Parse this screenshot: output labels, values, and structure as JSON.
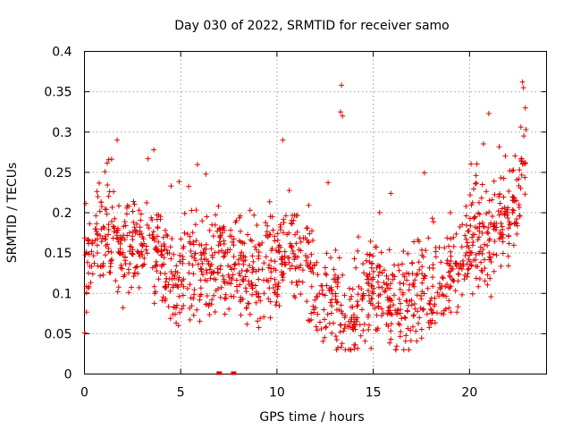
{
  "chart_data": {
    "type": "scatter",
    "title": "Day 030 of 2022, SRMTID for receiver samo",
    "xlabel": "GPS time / hours",
    "ylabel": "SRMTID / TECUs",
    "xlim": [
      0,
      24
    ],
    "ylim": [
      0,
      0.4
    ],
    "xticks": [
      0,
      5,
      10,
      15,
      20
    ],
    "xtick_labels": [
      "0",
      "5",
      "10",
      "15",
      "20"
    ],
    "yticks": [
      0,
      0.05,
      0.1,
      0.15,
      0.2,
      0.25,
      0.3,
      0.35,
      0.4
    ],
    "ytick_labels": [
      "0",
      "0.05",
      "0.1",
      "0.15",
      "0.2",
      "0.25",
      "0.3",
      "0.35",
      "0.4"
    ],
    "grid": true,
    "marker": "plus",
    "color": "#e00000",
    "zero_markers": {
      "x": [
        7.0,
        7.75
      ],
      "y": [
        0,
        0
      ]
    },
    "envelope": [
      [
        0.0,
        0.13
      ],
      [
        0.5,
        0.17
      ],
      [
        1.0,
        0.17
      ],
      [
        1.5,
        0.17
      ],
      [
        2.0,
        0.16
      ],
      [
        2.5,
        0.16
      ],
      [
        3.0,
        0.15
      ],
      [
        3.5,
        0.16
      ],
      [
        4.0,
        0.14
      ],
      [
        4.5,
        0.12
      ],
      [
        5.0,
        0.12
      ],
      [
        5.5,
        0.14
      ],
      [
        6.0,
        0.13
      ],
      [
        6.5,
        0.13
      ],
      [
        7.0,
        0.14
      ],
      [
        7.5,
        0.13
      ],
      [
        8.0,
        0.12
      ],
      [
        8.5,
        0.12
      ],
      [
        9.0,
        0.12
      ],
      [
        9.5,
        0.13
      ],
      [
        10.0,
        0.13
      ],
      [
        10.5,
        0.15
      ],
      [
        11.0,
        0.15
      ],
      [
        11.5,
        0.14
      ],
      [
        12.0,
        0.1
      ],
      [
        12.5,
        0.09
      ],
      [
        13.0,
        0.09
      ],
      [
        13.5,
        0.08
      ],
      [
        14.0,
        0.07
      ],
      [
        14.5,
        0.1
      ],
      [
        15.0,
        0.1
      ],
      [
        15.5,
        0.11
      ],
      [
        16.0,
        0.09
      ],
      [
        16.5,
        0.08
      ],
      [
        17.0,
        0.1
      ],
      [
        17.5,
        0.1
      ],
      [
        18.0,
        0.1
      ],
      [
        18.5,
        0.11
      ],
      [
        19.0,
        0.13
      ],
      [
        19.5,
        0.14
      ],
      [
        20.0,
        0.16
      ],
      [
        20.5,
        0.17
      ],
      [
        21.0,
        0.17
      ],
      [
        21.5,
        0.18
      ],
      [
        22.0,
        0.19
      ],
      [
        22.5,
        0.2
      ],
      [
        22.9,
        0.28
      ]
    ],
    "series": [
      {
        "name": "SRMTID",
        "x": [],
        "y": []
      }
    ]
  }
}
